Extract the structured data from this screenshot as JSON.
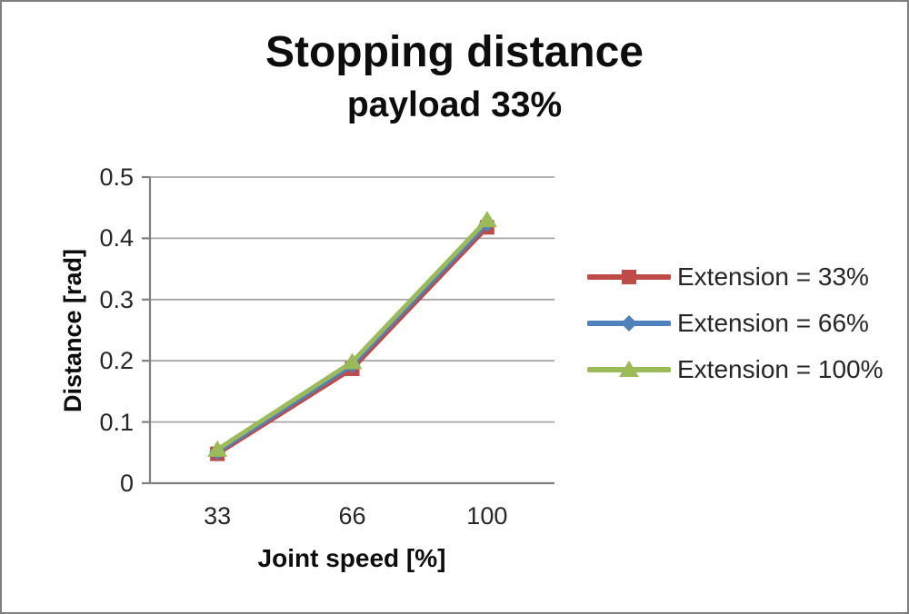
{
  "title": "Stopping distance",
  "subtitle": "payload 33%",
  "chart_data": {
    "type": "line",
    "title": "Stopping distance",
    "subtitle": "payload 33%",
    "xlabel": "Joint speed [%]",
    "ylabel": "Distance [rad]",
    "categories": [
      "33",
      "66",
      "100"
    ],
    "y_ticks": [
      "0",
      "0.1",
      "0.2",
      "0.3",
      "0.4",
      "0.5"
    ],
    "ylim": [
      0,
      0.5
    ],
    "grid": "horizontal",
    "legend_position": "right",
    "series": [
      {
        "name": "Extension = 33%",
        "color": "#be4b48",
        "marker": "square",
        "values": [
          0.048,
          0.187,
          0.418
        ]
      },
      {
        "name": "Extension = 66%",
        "color": "#4f81bd",
        "marker": "diamond",
        "values": [
          0.051,
          0.193,
          0.424
        ]
      },
      {
        "name": "Extension = 100%",
        "color": "#9bbb59",
        "marker": "triangle",
        "values": [
          0.055,
          0.198,
          0.43
        ]
      }
    ],
    "gridline_color": "#a6a6a6",
    "axis_color": "#7f7f7f",
    "tick_label_color": "#262626",
    "frame_border_color": "#7f7f7f",
    "background_color": "#ffffff"
  }
}
